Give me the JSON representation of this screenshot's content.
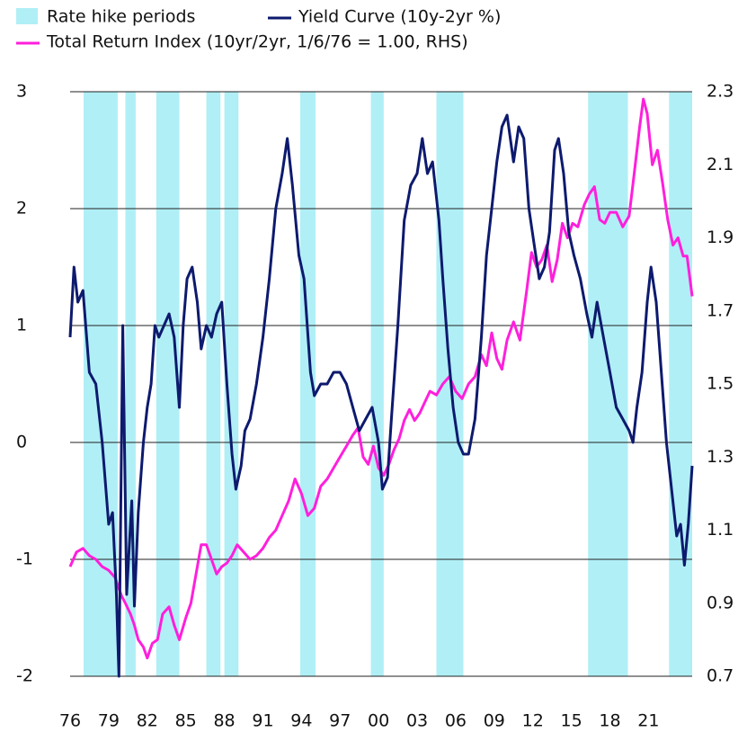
{
  "chart_data": {
    "type": "line",
    "xlim": [
      1976,
      2024.4
    ],
    "xticks": [
      {
        "value": 1976,
        "label": "76"
      },
      {
        "value": 1979,
        "label": "79"
      },
      {
        "value": 1982,
        "label": "82"
      },
      {
        "value": 1985,
        "label": "85"
      },
      {
        "value": 1988,
        "label": "88"
      },
      {
        "value": 1991,
        "label": "91"
      },
      {
        "value": 1994,
        "label": "94"
      },
      {
        "value": 1997,
        "label": "97"
      },
      {
        "value": 2000,
        "label": "00"
      },
      {
        "value": 2003,
        "label": "03"
      },
      {
        "value": 2006,
        "label": "06"
      },
      {
        "value": 2009,
        "label": "09"
      },
      {
        "value": 2012,
        "label": "12"
      },
      {
        "value": 2015,
        "label": "15"
      },
      {
        "value": 2018,
        "label": "18"
      },
      {
        "value": 2021,
        "label": "21"
      }
    ],
    "ylim": [
      -2,
      3
    ],
    "yticks": [
      -2,
      -1,
      0,
      1,
      2,
      3
    ],
    "y2lim": [
      0.7,
      2.3
    ],
    "y2ticks": [
      0.7,
      0.9,
      1.1,
      1.3,
      1.5,
      1.7,
      1.9,
      2.1,
      2.3
    ],
    "grid": true,
    "periods": {
      "name": "Rate hike periods",
      "color": "#b0eff6",
      "spans": [
        [
          1977.05,
          1979.7
        ],
        [
          1980.3,
          1981.1
        ],
        [
          1982.7,
          1984.5
        ],
        [
          1986.6,
          1987.7
        ],
        [
          1988.0,
          1989.1
        ],
        [
          1993.9,
          1995.1
        ],
        [
          1999.4,
          2000.4
        ],
        [
          2004.5,
          2006.6
        ],
        [
          2016.3,
          2019.4
        ],
        [
          2022.6,
          2024.4
        ]
      ]
    },
    "series": [
      {
        "name": "Yield Curve (10y-2yr %)",
        "color": "#0d1a6e",
        "axis": "y",
        "x": [
          1976.0,
          1976.3,
          1976.6,
          1977.0,
          1977.5,
          1978.0,
          1978.5,
          1979.0,
          1979.3,
          1979.6,
          1979.8,
          1980.1,
          1980.4,
          1980.8,
          1981.0,
          1981.3,
          1981.7,
          1982.0,
          1982.3,
          1982.6,
          1982.9,
          1983.3,
          1983.7,
          1984.1,
          1984.5,
          1984.8,
          1985.1,
          1985.5,
          1985.9,
          1986.2,
          1986.6,
          1987.0,
          1987.4,
          1987.8,
          1988.2,
          1988.6,
          1988.9,
          1989.3,
          1989.6,
          1990.0,
          1990.5,
          1991.0,
          1991.5,
          1992.0,
          1992.5,
          1992.9,
          1993.3,
          1993.8,
          1994.2,
          1994.7,
          1995.0,
          1995.5,
          1996.0,
          1996.5,
          1997.0,
          1997.5,
          1998.0,
          1998.5,
          1999.0,
          1999.5,
          2000.0,
          2000.3,
          2000.7,
          2001.0,
          2001.5,
          2002.0,
          2002.5,
          2003.0,
          2003.4,
          2003.8,
          2004.2,
          2004.7,
          2005.0,
          2005.4,
          2005.8,
          2006.2,
          2006.6,
          2007.0,
          2007.5,
          2008.0,
          2008.4,
          2008.8,
          2009.2,
          2009.6,
          2010.0,
          2010.5,
          2010.9,
          2011.3,
          2011.7,
          2012.1,
          2012.5,
          2012.9,
          2013.3,
          2013.7,
          2014.0,
          2014.4,
          2014.8,
          2015.2,
          2015.7,
          2016.2,
          2016.6,
          2017.0,
          2017.5,
          2018.0,
          2018.5,
          2019.0,
          2019.5,
          2019.8,
          2020.1,
          2020.5,
          2020.9,
          2021.2,
          2021.6,
          2022.0,
          2022.4,
          2022.8,
          2023.2,
          2023.5,
          2023.8,
          2024.1,
          2024.4
        ],
        "values": [
          0.9,
          1.5,
          1.2,
          1.3,
          0.6,
          0.5,
          0.0,
          -0.7,
          -0.6,
          -1.3,
          -2.0,
          1.0,
          -1.3,
          -0.5,
          -1.4,
          -0.6,
          0.0,
          0.3,
          0.5,
          1.0,
          0.9,
          1.0,
          1.1,
          0.9,
          0.3,
          1.0,
          1.4,
          1.5,
          1.2,
          0.8,
          1.0,
          0.9,
          1.1,
          1.2,
          0.5,
          -0.1,
          -0.4,
          -0.2,
          0.1,
          0.2,
          0.5,
          0.9,
          1.4,
          2.0,
          2.3,
          2.6,
          2.2,
          1.6,
          1.4,
          0.6,
          0.4,
          0.5,
          0.5,
          0.6,
          0.6,
          0.5,
          0.3,
          0.1,
          0.2,
          0.3,
          0.0,
          -0.4,
          -0.3,
          0.2,
          1.0,
          1.9,
          2.2,
          2.3,
          2.6,
          2.3,
          2.4,
          1.9,
          1.4,
          0.8,
          0.3,
          0.0,
          -0.1,
          -0.1,
          0.2,
          0.9,
          1.6,
          2.0,
          2.4,
          2.7,
          2.8,
          2.4,
          2.7,
          2.6,
          2.0,
          1.7,
          1.4,
          1.5,
          1.8,
          2.5,
          2.6,
          2.3,
          1.8,
          1.6,
          1.4,
          1.1,
          0.9,
          1.2,
          0.9,
          0.6,
          0.3,
          0.2,
          0.1,
          0.0,
          0.3,
          0.6,
          1.2,
          1.5,
          1.2,
          0.6,
          0.0,
          -0.4,
          -0.8,
          -0.7,
          -1.05,
          -0.7,
          -0.2
        ]
      },
      {
        "name": "Total Return Index (10yr/2yr, 1/6/76 = 1.00, RHS)",
        "color": "#ff1fdc",
        "axis": "y2",
        "x": [
          1976.0,
          1976.5,
          1977.0,
          1977.5,
          1978.0,
          1978.5,
          1979.0,
          1979.5,
          1980.0,
          1980.3,
          1980.7,
          1981.0,
          1981.3,
          1981.7,
          1982.0,
          1982.4,
          1982.8,
          1983.2,
          1983.7,
          1984.1,
          1984.5,
          1985.0,
          1985.4,
          1985.8,
          1986.2,
          1986.6,
          1987.0,
          1987.4,
          1987.8,
          1988.2,
          1988.6,
          1989.0,
          1989.5,
          1990.0,
          1990.5,
          1991.0,
          1991.5,
          1992.0,
          1992.5,
          1993.0,
          1993.5,
          1994.0,
          1994.5,
          1995.0,
          1995.5,
          1996.0,
          1996.5,
          1997.0,
          1997.5,
          1998.0,
          1998.4,
          1998.8,
          1999.2,
          1999.6,
          2000.0,
          2000.4,
          2000.8,
          2001.2,
          2001.6,
          2002.0,
          2002.4,
          2002.8,
          2003.2,
          2003.6,
          2004.0,
          2004.5,
          2005.0,
          2005.5,
          2006.0,
          2006.5,
          2007.0,
          2007.5,
          2008.0,
          2008.4,
          2008.8,
          2009.2,
          2009.6,
          2010.0,
          2010.5,
          2011.0,
          2011.5,
          2011.9,
          2012.3,
          2012.7,
          2013.1,
          2013.5,
          2013.9,
          2014.3,
          2014.7,
          2015.1,
          2015.5,
          2016.0,
          2016.4,
          2016.8,
          2017.2,
          2017.6,
          2018.0,
          2018.5,
          2019.0,
          2019.5,
          2019.9,
          2020.3,
          2020.6,
          2020.9,
          2021.3,
          2021.7,
          2022.1,
          2022.5,
          2022.9,
          2023.3,
          2023.7,
          2024.0,
          2024.4
        ],
        "values": [
          1.0,
          1.04,
          1.05,
          1.03,
          1.02,
          1.0,
          0.99,
          0.97,
          0.92,
          0.9,
          0.87,
          0.84,
          0.8,
          0.78,
          0.75,
          0.79,
          0.8,
          0.87,
          0.89,
          0.84,
          0.8,
          0.86,
          0.9,
          0.98,
          1.06,
          1.06,
          1.02,
          0.98,
          1.0,
          1.01,
          1.03,
          1.06,
          1.04,
          1.02,
          1.03,
          1.05,
          1.08,
          1.1,
          1.14,
          1.18,
          1.24,
          1.2,
          1.14,
          1.16,
          1.22,
          1.24,
          1.27,
          1.3,
          1.33,
          1.36,
          1.38,
          1.3,
          1.28,
          1.33,
          1.27,
          1.25,
          1.28,
          1.32,
          1.35,
          1.4,
          1.43,
          1.4,
          1.42,
          1.45,
          1.48,
          1.47,
          1.5,
          1.52,
          1.48,
          1.46,
          1.5,
          1.52,
          1.58,
          1.55,
          1.64,
          1.57,
          1.54,
          1.62,
          1.67,
          1.62,
          1.75,
          1.86,
          1.82,
          1.84,
          1.88,
          1.78,
          1.84,
          1.94,
          1.9,
          1.94,
          1.93,
          1.99,
          2.02,
          2.04,
          1.95,
          1.94,
          1.97,
          1.97,
          1.93,
          1.96,
          2.08,
          2.2,
          2.28,
          2.24,
          2.1,
          2.14,
          2.05,
          1.95,
          1.88,
          1.9,
          1.85,
          1.85,
          1.74
        ]
      }
    ]
  }
}
